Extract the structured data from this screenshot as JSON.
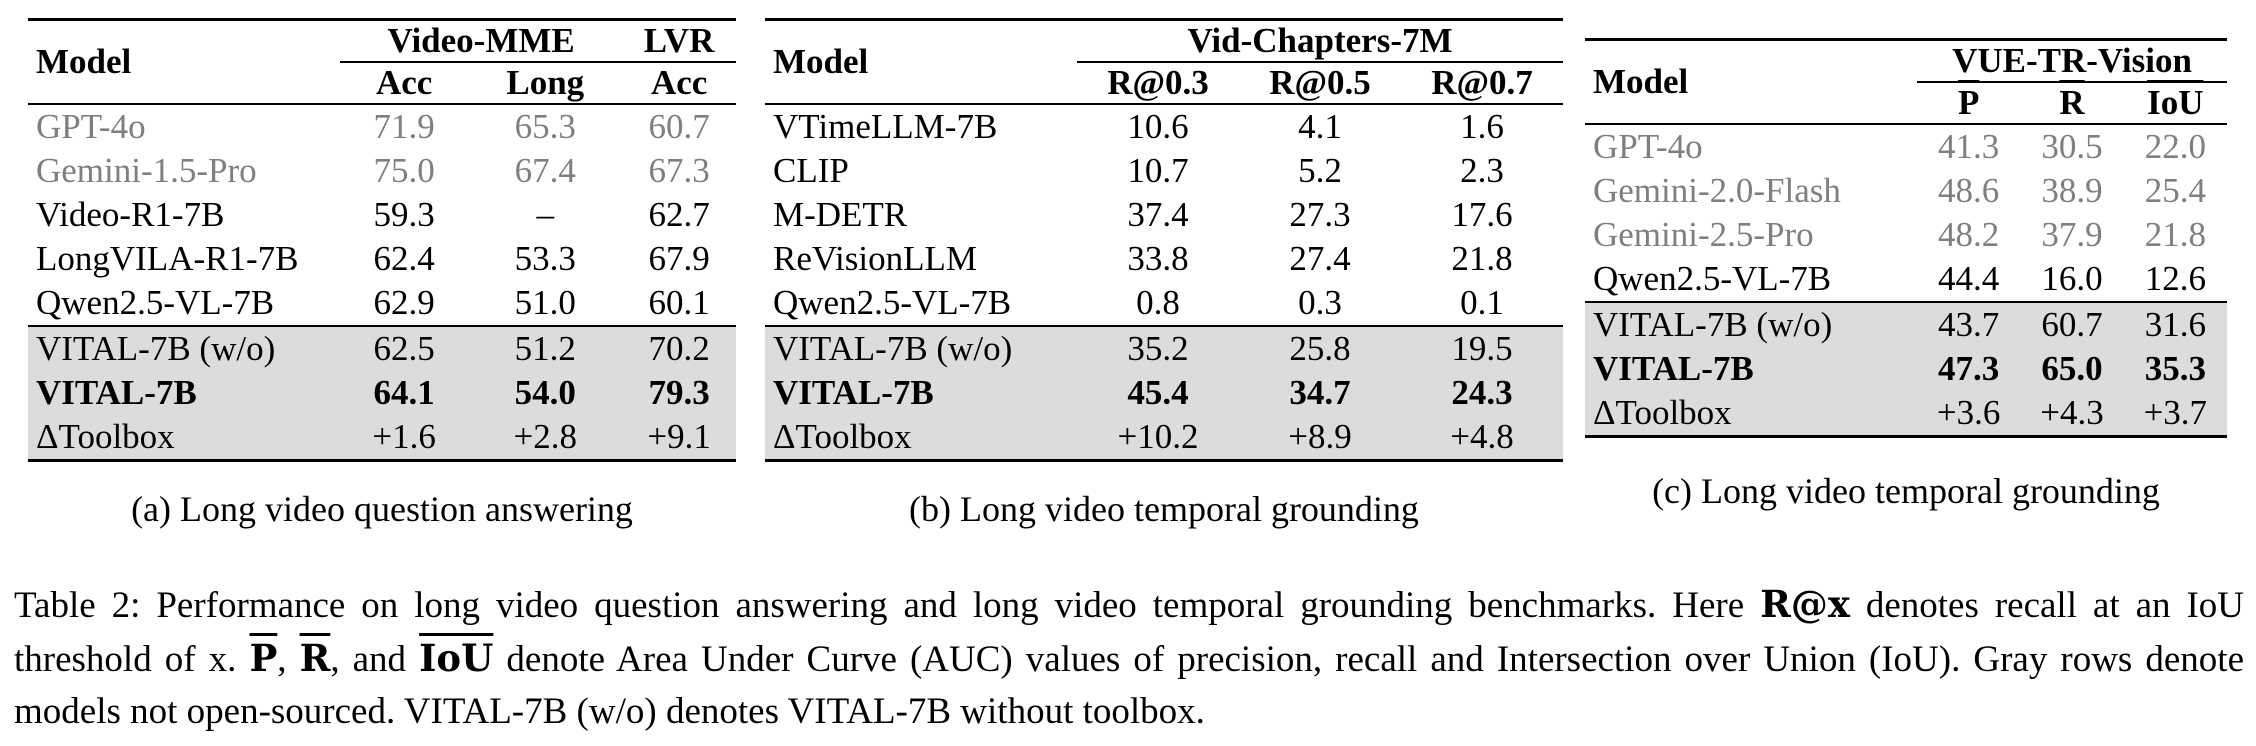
{
  "table_a": {
    "model_header": "Model",
    "group1": "Video-MME",
    "group2": "LVR",
    "cols": [
      "Acc",
      "Long",
      "Acc"
    ],
    "rows": [
      {
        "model": "GPT-4o",
        "v": [
          "71.9",
          "65.3",
          "60.7"
        ],
        "style": "gray"
      },
      {
        "model": "Gemini-1.5-Pro",
        "v": [
          "75.0",
          "67.4",
          "67.3"
        ],
        "style": "gray"
      },
      {
        "model": "Video-R1-7B",
        "v": [
          "59.3",
          "–",
          "62.7"
        ],
        "style": ""
      },
      {
        "model": "LongVILA-R1-7B",
        "v": [
          "62.4",
          "53.3",
          "67.9"
        ],
        "style": ""
      },
      {
        "model": "Qwen2.5-VL-7B",
        "v": [
          "62.9",
          "51.0",
          "60.1"
        ],
        "style": ""
      },
      {
        "model": "VITAL-7B (w/o)",
        "v": [
          "62.5",
          "51.2",
          "70.2"
        ],
        "style": "shade"
      },
      {
        "model": "VITAL-7B",
        "v": [
          "64.1",
          "54.0",
          "79.3"
        ],
        "style": "shade bold"
      },
      {
        "model": "ΔToolbox",
        "v": [
          "+1.6",
          "+2.8",
          "+9.1"
        ],
        "style": "shade"
      }
    ],
    "caption": "(a) Long video question answering"
  },
  "table_b": {
    "model_header": "Model",
    "group": "Vid-Chapters-7M",
    "cols": [
      "R@0.3",
      "R@0.5",
      "R@0.7"
    ],
    "rows": [
      {
        "model": "VTimeLLM-7B",
        "v": [
          "10.6",
          "4.1",
          "1.6"
        ],
        "style": ""
      },
      {
        "model": "CLIP",
        "v": [
          "10.7",
          "5.2",
          "2.3"
        ],
        "style": ""
      },
      {
        "model": "M-DETR",
        "v": [
          "37.4",
          "27.3",
          "17.6"
        ],
        "style": ""
      },
      {
        "model": "ReVisionLLM",
        "v": [
          "33.8",
          "27.4",
          "21.8"
        ],
        "style": ""
      },
      {
        "model": "Qwen2.5-VL-7B",
        "v": [
          "0.8",
          "0.3",
          "0.1"
        ],
        "style": ""
      },
      {
        "model": "VITAL-7B (w/o)",
        "v": [
          "35.2",
          "25.8",
          "19.5"
        ],
        "style": "shade"
      },
      {
        "model": "VITAL-7B",
        "v": [
          "45.4",
          "34.7",
          "24.3"
        ],
        "style": "shade bold"
      },
      {
        "model": "ΔToolbox",
        "v": [
          "+10.2",
          "+8.9",
          "+4.8"
        ],
        "style": "shade"
      }
    ],
    "caption": "(b) Long video temporal grounding"
  },
  "table_c": {
    "model_header": "Model",
    "group": "VUE-TR-Vision",
    "cols": [
      "P",
      "R",
      "IoU"
    ],
    "rows": [
      {
        "model": "GPT-4o",
        "v": [
          "41.3",
          "30.5",
          "22.0"
        ],
        "style": "gray"
      },
      {
        "model": "Gemini-2.0-Flash",
        "v": [
          "48.6",
          "38.9",
          "25.4"
        ],
        "style": "gray"
      },
      {
        "model": "Gemini-2.5-Pro",
        "v": [
          "48.2",
          "37.9",
          "21.8"
        ],
        "style": "gray"
      },
      {
        "model": "Qwen2.5-VL-7B",
        "v": [
          "44.4",
          "16.0",
          "12.6"
        ],
        "style": ""
      },
      {
        "model": "VITAL-7B (w/o)",
        "v": [
          "43.7",
          "60.7",
          "31.6"
        ],
        "style": "shade"
      },
      {
        "model": "VITAL-7B",
        "v": [
          "47.3",
          "65.0",
          "35.3"
        ],
        "style": "shade bold"
      },
      {
        "model": "ΔToolbox",
        "v": [
          "+3.6",
          "+4.3",
          "+3.7"
        ],
        "style": "shade"
      }
    ],
    "caption": "(c) Long video temporal grounding"
  },
  "main_caption": {
    "p1": "Table 2: Performance on long video question answering and long video temporal grounding benchmarks. Here ",
    "rx": "R@x",
    "p2": " denotes recall at an IoU threshold of x. ",
    "P": "P",
    "comma1": ", ",
    "R": "R",
    "and": ", and ",
    "IoU": "IoU",
    "p3": " denote Area Under Curve (AUC) values of precision, recall and Intersection over Union (IoU). Gray rows denote models not open-sourced. VITAL-7B (w/o) denotes VITAL-7B without toolbox."
  }
}
